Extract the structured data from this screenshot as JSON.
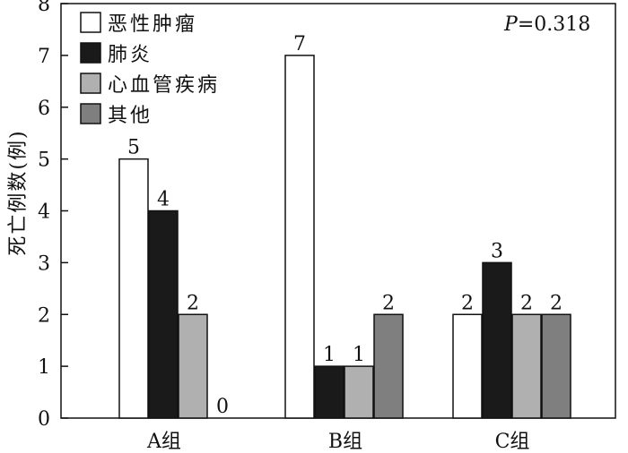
{
  "chart_data": {
    "type": "bar",
    "categories": [
      "A组",
      "B组",
      "C组"
    ],
    "series": [
      {
        "name": "恶性肿瘤",
        "values": [
          5,
          7,
          2
        ],
        "color": "#ffffff"
      },
      {
        "name": "肺炎",
        "values": [
          4,
          1,
          3
        ],
        "color": "#1a1a1a"
      },
      {
        "name": "心血管疾病",
        "values": [
          2,
          1,
          2
        ],
        "color": "#b0b0b0"
      },
      {
        "name": "其他",
        "values": [
          0,
          2,
          2
        ],
        "color": "#7f7f7f"
      }
    ],
    "ylabel": "死亡例数(例)",
    "xlabel": "",
    "ylim": [
      0,
      8
    ],
    "yticks": [
      "0",
      "1",
      "2",
      "3",
      "4",
      "5",
      "6",
      "7",
      "8"
    ],
    "legend_position": "top-left",
    "grid": false,
    "annotation": {
      "italic": "P",
      "rest": "=0.318"
    }
  }
}
